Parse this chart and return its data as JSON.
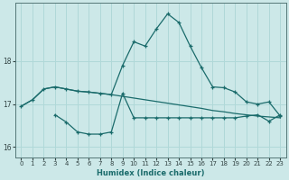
{
  "xlabel": "Humidex (Indice chaleur)",
  "bg_color": "#cce8e8",
  "grid_color": "#b0d8d8",
  "line_color": "#1a6b6b",
  "xlim": [
    -0.5,
    23.5
  ],
  "ylim": [
    15.75,
    19.35
  ],
  "yticks": [
    16,
    17,
    18
  ],
  "xticks": [
    0,
    1,
    2,
    3,
    4,
    5,
    6,
    7,
    8,
    9,
    10,
    11,
    12,
    13,
    14,
    15,
    16,
    17,
    18,
    19,
    20,
    21,
    22,
    23
  ],
  "line1_x": [
    0,
    1,
    2,
    3,
    4,
    5,
    6,
    7,
    8,
    9,
    10,
    11,
    12,
    13,
    14,
    15,
    16,
    17,
    18,
    19,
    20,
    21,
    22,
    23
  ],
  "line1_y": [
    16.95,
    17.1,
    17.35,
    17.4,
    17.35,
    17.3,
    17.28,
    17.25,
    17.22,
    17.18,
    17.14,
    17.1,
    17.06,
    17.02,
    16.98,
    16.94,
    16.9,
    16.85,
    16.82,
    16.78,
    16.75,
    16.72,
    16.7,
    16.68
  ],
  "line2_x": [
    0,
    1,
    2,
    3,
    4,
    5,
    6,
    7,
    8,
    9,
    10,
    11,
    12,
    13,
    14,
    15,
    16,
    17,
    18,
    19,
    20,
    21,
    22,
    23
  ],
  "line2_y": [
    16.95,
    17.1,
    17.35,
    17.4,
    17.35,
    17.3,
    17.28,
    17.25,
    17.22,
    17.9,
    18.45,
    18.35,
    18.75,
    19.1,
    18.9,
    18.35,
    17.85,
    17.4,
    17.38,
    17.28,
    17.05,
    17.0,
    17.05,
    16.72
  ],
  "line3_x": [
    3,
    4,
    5,
    6,
    7,
    8,
    9,
    10,
    11,
    12,
    13,
    14,
    15,
    16,
    17,
    18,
    19,
    20,
    21,
    22,
    23
  ],
  "line3_y": [
    16.75,
    16.58,
    16.35,
    16.3,
    16.3,
    16.35,
    17.25,
    16.68,
    16.68,
    16.68,
    16.68,
    16.68,
    16.68,
    16.68,
    16.68,
    16.68,
    16.68,
    16.72,
    16.75,
    16.6,
    16.75
  ]
}
